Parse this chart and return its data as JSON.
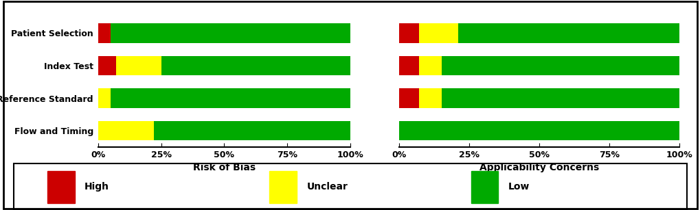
{
  "categories": [
    "Patient Selection",
    "Index Test",
    "Reference Standard",
    "Flow and Timing"
  ],
  "rob_high": [
    5,
    7,
    0,
    0
  ],
  "rob_unclear": [
    0,
    18,
    5,
    22
  ],
  "rob_low": [
    95,
    75,
    95,
    78
  ],
  "app_high": [
    7,
    7,
    7,
    0
  ],
  "app_unclear": [
    14,
    8,
    8,
    0
  ],
  "app_low": [
    79,
    85,
    85,
    100
  ],
  "color_high": "#cc0000",
  "color_unclear": "#ffff00",
  "color_low": "#00aa00",
  "xlabel_left": "Risk of Bias",
  "xlabel_right": "Applicability Concerns",
  "xticks": [
    0,
    25,
    50,
    75,
    100
  ],
  "xticklabels": [
    "0%",
    "25%",
    "50%",
    "75%",
    "100%"
  ],
  "legend_labels": [
    "High",
    "Unclear",
    "Low"
  ],
  "background_color": "#ffffff",
  "border_color": "#000000"
}
